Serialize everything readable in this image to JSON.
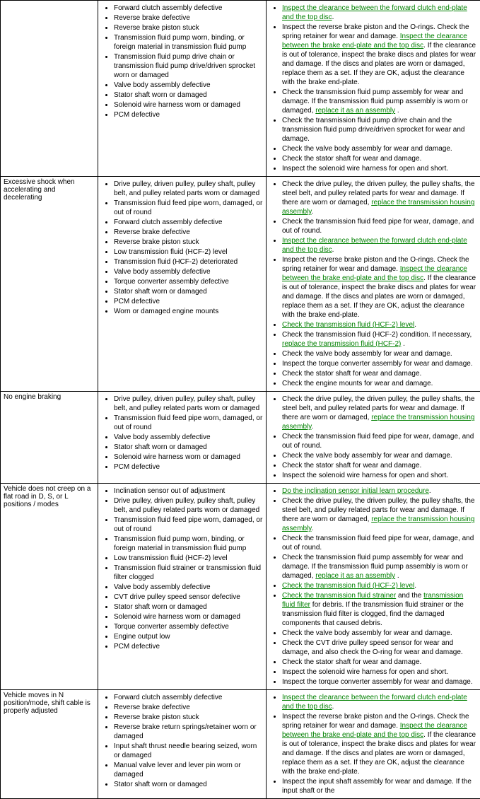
{
  "rows": [
    {
      "symptom": "",
      "causes": [
        "Forward clutch assembly defective",
        "Reverse brake defective",
        "Reverse brake piston stuck",
        "Transmission fluid pump worn, binding, or foreign material in transmission fluid pump",
        "Transmission fluid pump drive chain or transmission fluid pump drive/driven sprocket worn or damaged",
        "Valve body assembly defective",
        "Stator shaft worn or damaged",
        "Solenoid wire harness worn or damaged",
        "PCM defective"
      ],
      "actions": [
        {
          "parts": [
            {
              "type": "link",
              "text": "Inspect the clearance between the forward clutch end-plate and the top disc"
            },
            {
              "type": "plain",
              "text": "."
            }
          ]
        },
        {
          "parts": [
            {
              "type": "plain",
              "text": "Inspect the reverse brake piston and the O-rings. Check the spring retainer for wear and damage. "
            },
            {
              "type": "link",
              "text": "Inspect the clearance between the brake end-plate and the top disc"
            },
            {
              "type": "plain",
              "text": ". If the clearance is out of tolerance, inspect the brake discs and plates for wear and damage. If the discs and plates are worn or damaged, replace them as a set. If they are OK, adjust the clearance with the brake end-plate."
            }
          ]
        },
        {
          "parts": [
            {
              "type": "plain",
              "text": "Check the transmission fluid pump assembly for wear and damage. If the transmission fluid pump assembly is worn or damaged, "
            },
            {
              "type": "link",
              "text": "replace it as an assembly"
            },
            {
              "type": "plain",
              "text": " ."
            }
          ]
        },
        {
          "parts": [
            {
              "type": "plain",
              "text": "Check the transmission fluid pump drive chain and the transmission fluid pump drive/driven sprocket for wear and damage."
            }
          ]
        },
        {
          "parts": [
            {
              "type": "plain",
              "text": "Check the valve body assembly for wear and damage."
            }
          ]
        },
        {
          "parts": [
            {
              "type": "plain",
              "text": "Check the stator shaft for wear and damage."
            }
          ]
        },
        {
          "parts": [
            {
              "type": "plain",
              "text": "Inspect the solenoid wire harness for open and short."
            }
          ]
        }
      ]
    },
    {
      "symptom": "Excessive shock when accelerating and decelerating",
      "causes": [
        "Drive pulley, driven pulley, pulley shaft, pulley belt, and pulley related parts worn or damaged",
        "Transmission fluid feed pipe worn, damaged, or out of round",
        "Forward clutch assembly defective",
        "Reverse brake defective",
        "Reverse brake piston stuck",
        "Low transmission fluid (HCF-2) level",
        "Transmission fluid (HCF-2) deteriorated",
        "Valve body assembly defective",
        "Torque converter assembly defective",
        "Stator shaft worn or damaged",
        "PCM defective",
        "Worn or damaged engine mounts"
      ],
      "actions": [
        {
          "parts": [
            {
              "type": "plain",
              "text": "Check the drive pulley, the driven pulley, the pulley shafts, the steel belt, and pulley related parts for wear and damage. If there are worn or damaged, "
            },
            {
              "type": "link",
              "text": "replace the transmission housing assembly"
            },
            {
              "type": "plain",
              "text": "."
            }
          ]
        },
        {
          "parts": [
            {
              "type": "plain",
              "text": "Check the transmission fluid feed pipe for wear, damage, and out of round."
            }
          ]
        },
        {
          "parts": [
            {
              "type": "link",
              "text": "Inspect the clearance between the forward clutch end-plate and the top disc"
            },
            {
              "type": "plain",
              "text": "."
            }
          ]
        },
        {
          "parts": [
            {
              "type": "plain",
              "text": "Inspect the reverse brake piston and the O-rings. Check the spring retainer for wear and damage. "
            },
            {
              "type": "link",
              "text": "Inspect the clearance between the brake end-plate and the top disc"
            },
            {
              "type": "plain",
              "text": ". If the clearance is out of tolerance, inspect the brake discs and plates for wear and damage. If the discs and plates are worn or damaged, replace them as a set. If they are OK, adjust the clearance with the brake end-plate."
            }
          ]
        },
        {
          "parts": [
            {
              "type": "link",
              "text": "Check the transmission fluid (HCF-2) level"
            },
            {
              "type": "plain",
              "text": "."
            }
          ]
        },
        {
          "parts": [
            {
              "type": "plain",
              "text": "Check the transmission fluid (HCF-2) condition. If necessary, "
            },
            {
              "type": "link",
              "text": "replace the transmission fluid (HCF-2)"
            },
            {
              "type": "plain",
              "text": " ."
            }
          ]
        },
        {
          "parts": [
            {
              "type": "plain",
              "text": "Check the valve body assembly for wear and damage."
            }
          ]
        },
        {
          "parts": [
            {
              "type": "plain",
              "text": "Inspect the torque converter assembly for wear and damage."
            }
          ]
        },
        {
          "parts": [
            {
              "type": "plain",
              "text": "Check the stator shaft for wear and damage."
            }
          ]
        },
        {
          "parts": [
            {
              "type": "plain",
              "text": "Check the engine mounts for wear and damage."
            }
          ]
        }
      ]
    },
    {
      "symptom": "No engine braking",
      "causes": [
        "Drive pulley, driven pulley, pulley shaft, pulley belt, and pulley related parts worn or damaged",
        "Transmission fluid feed pipe worn, damaged, or out of round",
        "Valve body assembly defective",
        "Stator shaft worn or damaged",
        "Solenoid wire harness worn or damaged",
        "PCM defective"
      ],
      "actions": [
        {
          "parts": [
            {
              "type": "plain",
              "text": "Check the drive pulley, the driven pulley, the pulley shafts, the steel belt, and pulley related parts for wear and damage. If there are worn or damaged, "
            },
            {
              "type": "link",
              "text": "replace the transmission housing assembly"
            },
            {
              "type": "plain",
              "text": "."
            }
          ]
        },
        {
          "parts": [
            {
              "type": "plain",
              "text": "Check the transmission fluid feed pipe for wear, damage, and out of round."
            }
          ]
        },
        {
          "parts": [
            {
              "type": "plain",
              "text": "Check the valve body assembly for wear and damage."
            }
          ]
        },
        {
          "parts": [
            {
              "type": "plain",
              "text": "Check the stator shaft for wear and damage."
            }
          ]
        },
        {
          "parts": [
            {
              "type": "plain",
              "text": "Inspect the solenoid wire harness for open and short."
            }
          ]
        }
      ]
    },
    {
      "symptom": "Vehicle does not creep on a flat road in D, S, or L positions / modes",
      "causes": [
        "Inclination sensor out of adjustment",
        "Drive pulley, driven pulley, pulley shaft, pulley belt, and pulley related parts worn or damaged",
        "Transmission fluid feed pipe worn, damaged, or out of round",
        "Transmission fluid pump worn, binding, or foreign material in transmission fluid pump",
        "Low transmission fluid (HCF-2) level",
        "Transmission fluid strainer or transmission fluid filter clogged",
        "Valve body assembly defective",
        "CVT drive pulley speed sensor defective",
        "Stator shaft worn or damaged",
        "Solenoid wire harness worn or damaged",
        "Torque converter assembly defective",
        "Engine output low",
        "PCM defective"
      ],
      "actions": [
        {
          "parts": [
            {
              "type": "link",
              "text": "Do the inclination sensor initial learn procedure"
            },
            {
              "type": "plain",
              "text": "."
            }
          ]
        },
        {
          "parts": [
            {
              "type": "plain",
              "text": "Check the drive pulley, the driven pulley, the pulley shafts, the steel belt, and pulley related parts for wear and damage. If there are worn or damaged, "
            },
            {
              "type": "link",
              "text": "replace the transmission housing assembly"
            },
            {
              "type": "plain",
              "text": "."
            }
          ]
        },
        {
          "parts": [
            {
              "type": "plain",
              "text": "Check the transmission fluid feed pipe for wear, damage, and out of round."
            }
          ]
        },
        {
          "parts": [
            {
              "type": "plain",
              "text": "Check the transmission fluid pump assembly for wear and damage. If the transmission fluid pump assembly is worn or damaged, "
            },
            {
              "type": "link",
              "text": "replace it as an assembly"
            },
            {
              "type": "plain",
              "text": " ."
            }
          ]
        },
        {
          "parts": [
            {
              "type": "link",
              "text": "Check the transmission fluid (HCF-2) level"
            },
            {
              "type": "plain",
              "text": "."
            }
          ]
        },
        {
          "parts": [
            {
              "type": "link",
              "text": "Check the transmission fluid strainer"
            },
            {
              "type": "plain",
              "text": " and the "
            },
            {
              "type": "link",
              "text": "transmission fluid filter"
            },
            {
              "type": "plain",
              "text": " for debris. If the transmission fluid strainer or the transmission fluid filter is clogged, find the damaged components that caused debris."
            }
          ]
        },
        {
          "parts": [
            {
              "type": "plain",
              "text": "Check the valve body assembly for wear and damage."
            }
          ]
        },
        {
          "parts": [
            {
              "type": "plain",
              "text": "Check the CVT drive pulley speed sensor for wear and damage, and also check the O-ring for wear and damage."
            }
          ]
        },
        {
          "parts": [
            {
              "type": "plain",
              "text": "Check the stator shaft for wear and damage."
            }
          ]
        },
        {
          "parts": [
            {
              "type": "plain",
              "text": "Inspect the solenoid wire harness for open and short."
            }
          ]
        },
        {
          "parts": [
            {
              "type": "plain",
              "text": "Inspect the torque converter assembly for wear and damage."
            }
          ]
        }
      ]
    },
    {
      "symptom": "Vehicle moves in N position/mode, shift cable is properly adjusted",
      "causes": [
        "Forward clutch assembly defective",
        "Reverse brake defective",
        "Reverse brake piston stuck",
        "Reverse brake return springs/retainer worn or damaged",
        "Input shaft thrust needle bearing seized, worn or damaged",
        "Manual valve lever and lever pin worn or damaged",
        "Stator shaft worn or damaged"
      ],
      "actions": [
        {
          "parts": [
            {
              "type": "link",
              "text": "Inspect the clearance between the forward clutch end-plate and the top disc"
            },
            {
              "type": "plain",
              "text": "."
            }
          ]
        },
        {
          "parts": [
            {
              "type": "plain",
              "text": "Inspect the reverse brake piston and the O-rings. Check the spring retainer for wear and damage. "
            },
            {
              "type": "link",
              "text": "Inspect the clearance between the brake end-plate and the top disc"
            },
            {
              "type": "plain",
              "text": ". If the clearance is out of tolerance, inspect the brake discs and plates for wear and damage. If the discs and plates are worn or damaged, replace them as a set. If they are OK, adjust the clearance with the brake end-plate."
            }
          ]
        },
        {
          "parts": [
            {
              "type": "plain",
              "text": "Inspect the input shaft assembly for wear and damage. If the input shaft or the"
            }
          ]
        }
      ]
    }
  ]
}
